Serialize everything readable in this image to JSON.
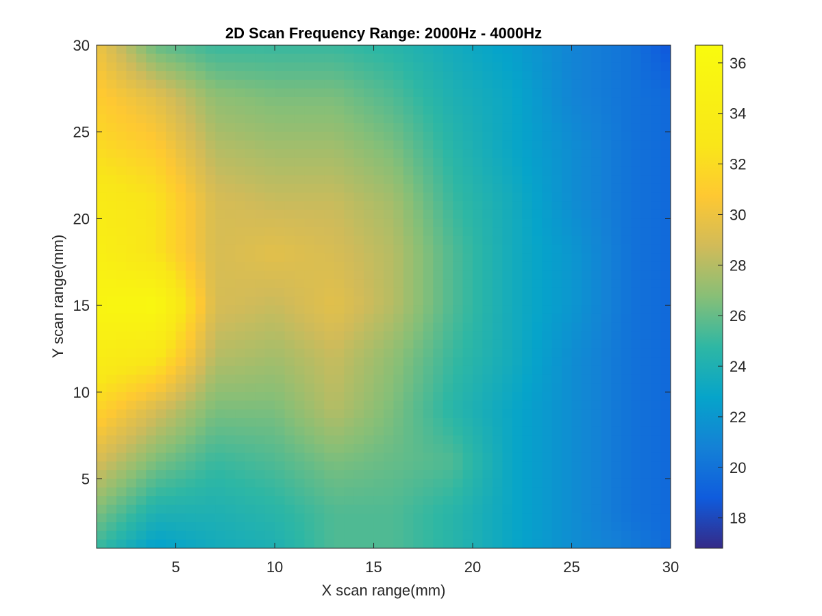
{
  "chart_data": {
    "type": "heatmap",
    "title": "2D Scan Frequency Range: 2000Hz - 4000Hz",
    "xlabel": "X scan range(mm)",
    "ylabel": "Y scan range(mm)",
    "xlim": [
      1,
      30
    ],
    "ylim": [
      1,
      30
    ],
    "x_ticks": [
      5,
      10,
      15,
      20,
      25,
      30
    ],
    "y_ticks": [
      5,
      10,
      15,
      20,
      25,
      30
    ],
    "colorbar": {
      "colormap": "parula",
      "range": [
        16.8,
        36.7
      ],
      "ticks": [
        18,
        20,
        22,
        24,
        26,
        28,
        30,
        32,
        34,
        36
      ]
    },
    "x": [
      1,
      4,
      7,
      10,
      13,
      16,
      19,
      22,
      25,
      28,
      30
    ],
    "y": [
      30,
      27,
      24,
      21,
      18,
      15,
      12,
      9,
      6,
      3,
      1
    ],
    "z": [
      [
        30.0,
        26.0,
        25.0,
        25.0,
        25.0,
        24.5,
        23.5,
        22.5,
        21.0,
        20.0,
        18.5
      ],
      [
        31.0,
        29.5,
        27.0,
        26.5,
        26.5,
        25.5,
        24.0,
        23.0,
        21.0,
        20.0,
        19.5
      ],
      [
        32.0,
        31.0,
        28.0,
        27.5,
        27.5,
        26.5,
        24.5,
        23.0,
        21.5,
        20.0,
        19.5
      ],
      [
        33.5,
        32.5,
        29.0,
        28.5,
        28.5,
        27.5,
        25.0,
        23.5,
        21.5,
        20.0,
        19.5
      ],
      [
        34.5,
        32.5,
        29.0,
        29.5,
        29.0,
        28.0,
        25.5,
        23.5,
        22.0,
        20.0,
        19.5
      ],
      [
        35.5,
        36.0,
        29.0,
        28.5,
        29.5,
        28.0,
        25.5,
        23.5,
        22.0,
        20.0,
        19.5
      ],
      [
        34.0,
        33.0,
        28.0,
        27.5,
        28.5,
        27.0,
        25.0,
        23.5,
        21.5,
        20.0,
        19.5
      ],
      [
        31.5,
        29.0,
        26.5,
        26.5,
        28.0,
        26.5,
        24.5,
        23.0,
        21.5,
        20.0,
        19.5
      ],
      [
        29.0,
        26.5,
        25.0,
        25.5,
        26.5,
        26.0,
        25.5,
        23.0,
        21.5,
        20.0,
        19.5
      ],
      [
        26.5,
        24.0,
        24.0,
        24.5,
        25.5,
        25.5,
        24.5,
        23.0,
        21.5,
        20.0,
        19.5
      ],
      [
        25.0,
        22.5,
        23.5,
        24.0,
        25.5,
        25.5,
        24.5,
        23.0,
        21.5,
        20.5,
        19.5
      ]
    ]
  }
}
